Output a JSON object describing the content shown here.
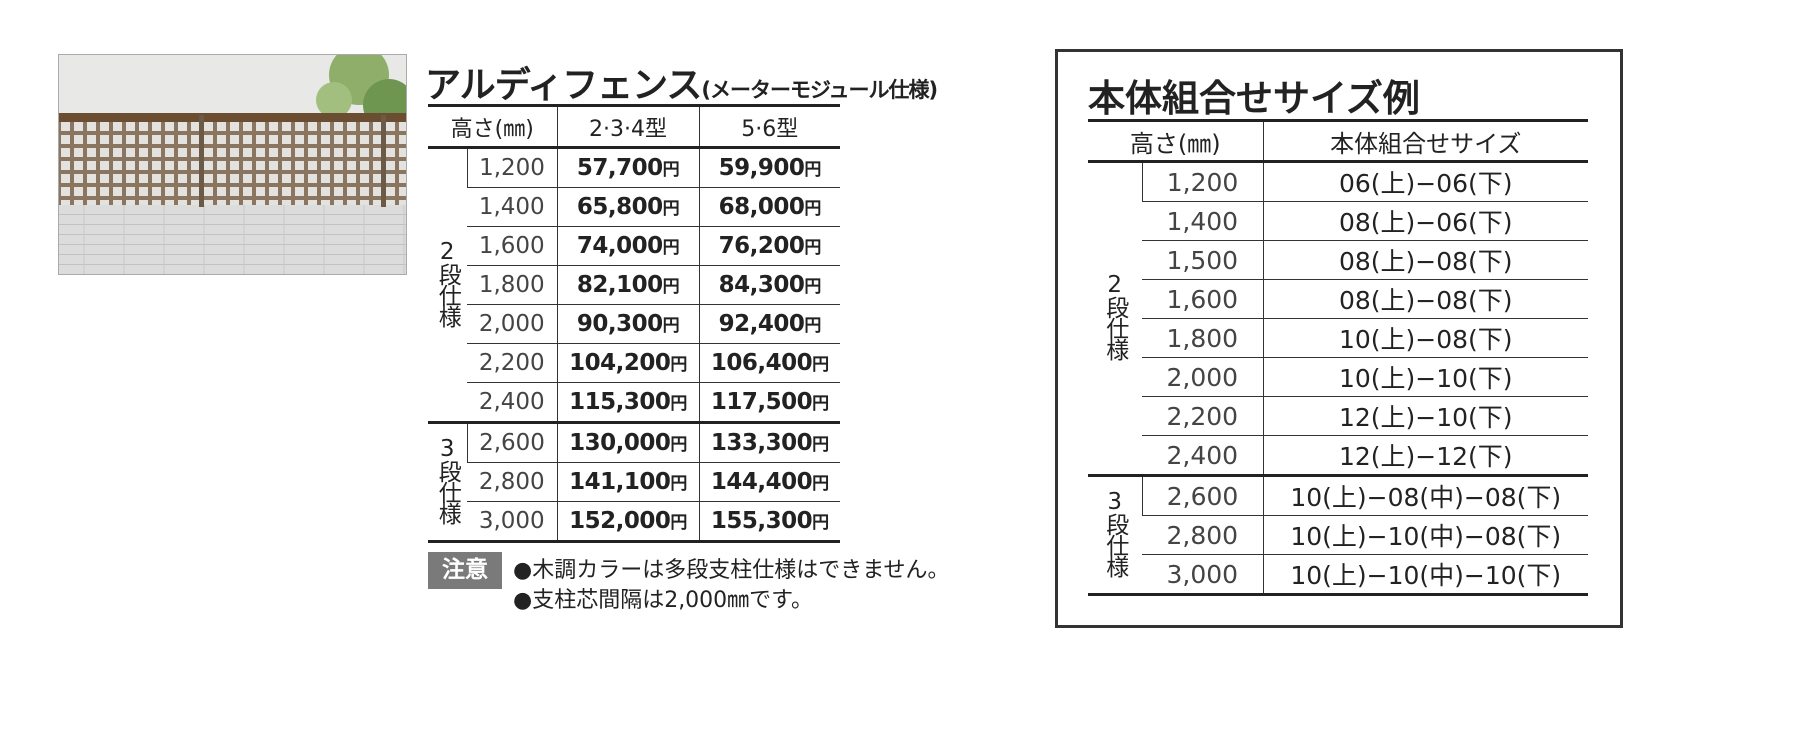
{
  "price_table": {
    "title": "アルディフェンス",
    "subtitle": "(メーターモジュール仕様)",
    "headers": [
      "高さ(㎜)",
      "2·3·4型",
      "5·6型"
    ],
    "unit": "円",
    "groups": [
      {
        "label": "2段仕様",
        "rows": [
          [
            "1,200",
            "57,700",
            "59,900"
          ],
          [
            "1,400",
            "65,800",
            "68,000"
          ],
          [
            "1,600",
            "74,000",
            "76,200"
          ],
          [
            "1,800",
            "82,100",
            "84,300"
          ],
          [
            "2,000",
            "90,300",
            "92,400"
          ],
          [
            "2,200",
            "104,200",
            "106,400"
          ],
          [
            "2,400",
            "115,300",
            "117,500"
          ]
        ]
      },
      {
        "label": "3段仕様",
        "rows": [
          [
            "2,600",
            "130,000",
            "133,300"
          ],
          [
            "2,800",
            "141,100",
            "144,400"
          ],
          [
            "3,000",
            "152,000",
            "155,300"
          ]
        ]
      }
    ]
  },
  "notes": {
    "label": "注意",
    "items": [
      "●木調カラーは多段支柱仕様はできません。",
      "●支柱芯間隔は2,000㎜です。"
    ]
  },
  "size_table": {
    "title": "本体組合せサイズ例",
    "headers": [
      "高さ(㎜)",
      "本体組合せサイズ"
    ],
    "groups": [
      {
        "label": "2段仕様",
        "rows": [
          [
            "1,200",
            "06(上)−06(下)"
          ],
          [
            "1,400",
            "08(上)−06(下)"
          ],
          [
            "1,500",
            "08(上)−08(下)"
          ],
          [
            "1,600",
            "08(上)−08(下)"
          ],
          [
            "1,800",
            "10(上)−08(下)"
          ],
          [
            "2,000",
            "10(上)−10(下)"
          ],
          [
            "2,200",
            "12(上)−10(下)"
          ],
          [
            "2,400",
            "12(上)−12(下)"
          ]
        ]
      },
      {
        "label": "3段仕様",
        "rows": [
          [
            "2,600",
            "10(上)−08(中)−08(下)"
          ],
          [
            "2,800",
            "10(上)−10(中)−08(下)"
          ],
          [
            "3,000",
            "10(上)−10(中)−10(下)"
          ]
        ]
      }
    ]
  }
}
